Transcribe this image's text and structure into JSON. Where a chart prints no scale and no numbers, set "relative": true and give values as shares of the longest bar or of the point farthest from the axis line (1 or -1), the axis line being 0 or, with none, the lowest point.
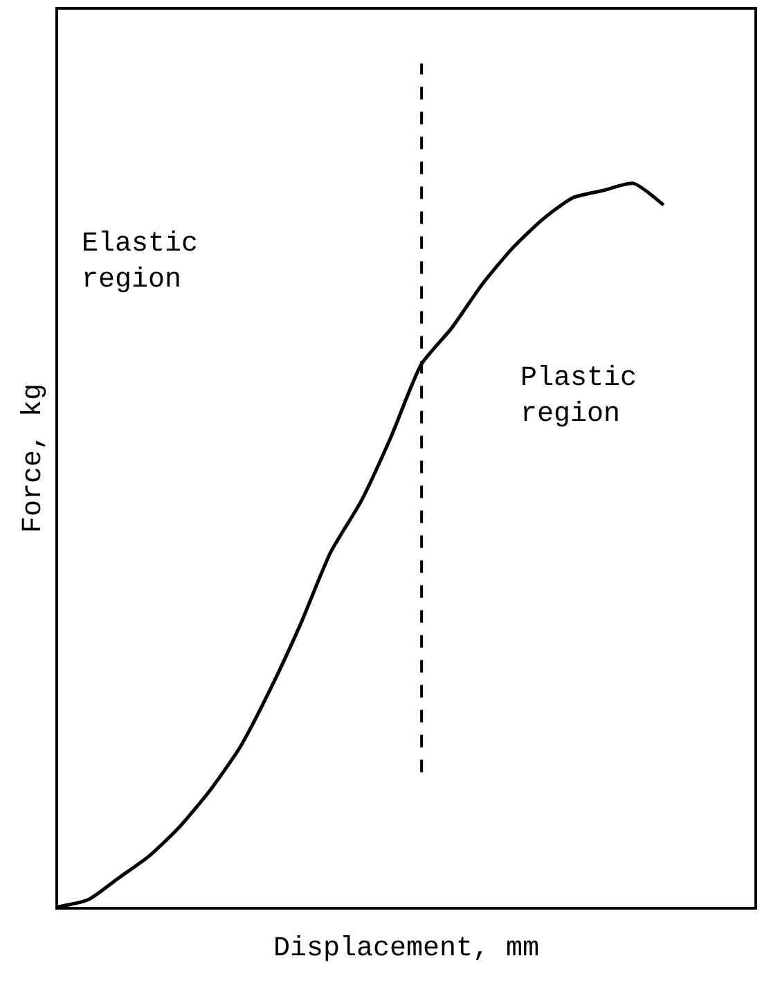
{
  "chart_data": {
    "type": "line",
    "xlabel": "Displacement, mm",
    "ylabel": "Force, kg",
    "relative": true,
    "categories": [
      null,
      null,
      null,
      null,
      null,
      null,
      null,
      null,
      null,
      null,
      null,
      null,
      null,
      null,
      null,
      null,
      null,
      null,
      null,
      null,
      null
    ],
    "series": [
      {
        "color": "#000000",
        "values": [
          0,
          0.01,
          0.04,
          0.07,
          0.11,
          0.16,
          0.22,
          0.3,
          0.39,
          0.49,
          0.56,
          0.65,
          0.75,
          0.8,
          0.86,
          0.91,
          0.95,
          0.98,
          0.99,
          1.0,
          0.97
        ]
      }
    ],
    "annotations": [
      "Elastic region",
      "Plastic region"
    ],
    "legend": false,
    "marker": "none",
    "line_style": "solid"
  }
}
